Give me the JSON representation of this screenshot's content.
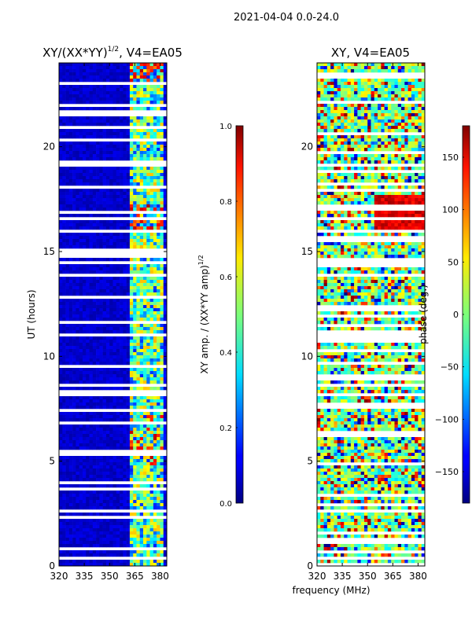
{
  "suptitle": "2021-04-04 0.0-24.0",
  "shared_xlabel": "frequency (MHz)",
  "chart_data": [
    {
      "type": "heatmap",
      "title_main": "XY/(XX*YY)",
      "title_sup": "1/2",
      "title_tail": ", V4=EA05",
      "ylabel": "UT (hours)",
      "xlim": [
        320,
        384
      ],
      "ylim": [
        0,
        24
      ],
      "xticks": [
        320,
        335,
        350,
        365,
        380
      ],
      "yticks": [
        0,
        5,
        10,
        15,
        20
      ],
      "colorbar": {
        "label_main": "XY amp. / (XX*YY amp)",
        "label_sup": "1/2",
        "range": [
          0,
          1
        ],
        "ticks": [
          "0.0",
          "0.2",
          "0.4",
          "0.6",
          "0.8",
          "1.0"
        ],
        "tick_values": [
          0,
          0.2,
          0.4,
          0.6,
          0.8,
          1.0
        ]
      }
    },
    {
      "type": "heatmap",
      "title_main": "XY, V4=EA05",
      "ylabel": "",
      "xlim": [
        320,
        384
      ],
      "ylim": [
        0,
        24
      ],
      "xticks": [
        320,
        335,
        350,
        365,
        380
      ],
      "yticks": [
        0,
        5,
        10,
        15,
        20
      ],
      "colorbar": {
        "label_main": "phase (deg.)",
        "range": [
          -180,
          180
        ],
        "ticks": [
          "−150",
          "−100",
          "−50",
          "0",
          "50",
          "100",
          "150"
        ],
        "tick_values": [
          -150,
          -100,
          -50,
          0,
          50,
          100,
          150
        ]
      }
    }
  ]
}
